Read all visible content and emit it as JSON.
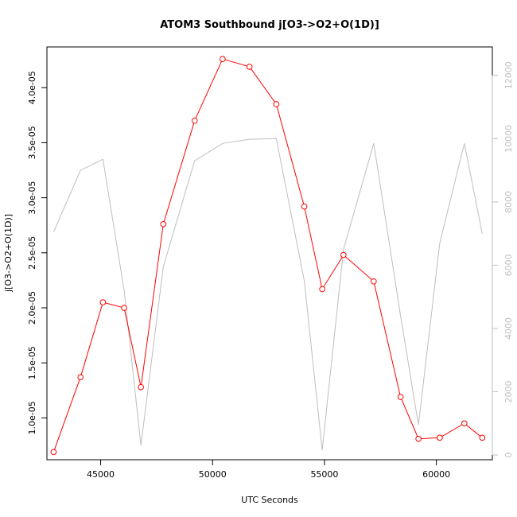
{
  "chart_data": {
    "type": "line",
    "title": "ATOM3 Southbound j[O3->O2+O(1D)]",
    "xlabel": "UTC Seconds",
    "ylabel": "j[O3->O2+O(1D)]",
    "xlim": [
      42600,
      62500
    ],
    "ylim": [
      6.2e-06,
      4.37e-05
    ],
    "y2lim": [
      -150,
      12900
    ],
    "x_ticks": [
      45000,
      50000,
      55000,
      60000
    ],
    "x_tick_labels": [
      "45000",
      "50000",
      "55000",
      "60000"
    ],
    "y_ticks": [
      1e-05,
      1.5e-05,
      2e-05,
      2.5e-05,
      3e-05,
      3.5e-05,
      4e-05
    ],
    "y_tick_labels": [
      "1.0e-05",
      "1.5e-05",
      "2.0e-05",
      "2.5e-05",
      "3.0e-05",
      "3.5e-05",
      "4.0e-05"
    ],
    "y2_ticks": [
      0,
      2000,
      4000,
      6000,
      8000,
      10000,
      12000
    ],
    "y2_tick_labels": [
      "0",
      "2000",
      "4000",
      "6000",
      "8000",
      "10000",
      "12000"
    ],
    "grid": false,
    "colors": {
      "primary": "#ff0000",
      "secondary": "#bebebe",
      "axis": "#000000"
    },
    "series": [
      {
        "axis": "left",
        "style": "line+circles",
        "x": [
          42900,
          44100,
          45100,
          46050,
          46800,
          47800,
          49200,
          50450,
          51650,
          52850,
          54100,
          54900,
          55850,
          57200,
          58400,
          59200,
          60150,
          61250,
          62050
        ],
        "y": [
          6.9e-06,
          1.37e-05,
          2.05e-05,
          2e-05,
          1.28e-05,
          2.76e-05,
          3.7e-05,
          4.26e-05,
          4.19e-05,
          3.85e-05,
          2.92e-05,
          2.17e-05,
          2.48e-05,
          2.24e-05,
          1.19e-05,
          8.1e-06,
          8.2e-06,
          9.5e-06,
          8.2e-06
        ]
      },
      {
        "axis": "right",
        "style": "line",
        "x": [
          42900,
          44100,
          45100,
          46050,
          46800,
          47800,
          49200,
          50450,
          51650,
          52850,
          54100,
          54900,
          55850,
          57200,
          58400,
          59200,
          60150,
          61250,
          62050
        ],
        "y": [
          7050,
          9000,
          9350,
          5200,
          300,
          5950,
          9300,
          9850,
          9980,
          10000,
          5500,
          150,
          6500,
          9850,
          4400,
          950,
          6700,
          9850,
          7000
        ]
      }
    ]
  }
}
